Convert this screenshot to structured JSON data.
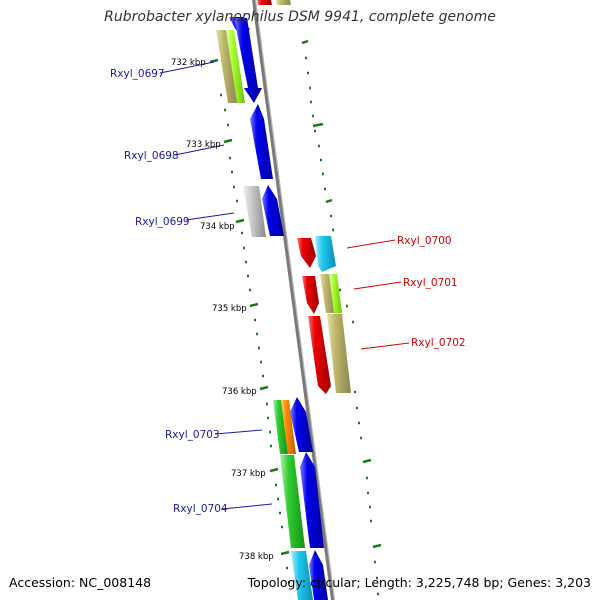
{
  "title": "Rubrobacter xylanophilus DSM 9941, complete genome",
  "footer": {
    "accession": "Accession: NC_008148",
    "topology": "Topology: circular; Length: 3,225,748 bp; Genes: 3,203"
  },
  "tick_labels": [
    "732 kbp",
    "733 kbp",
    "734 kbp",
    "735 kbp",
    "736 kbp",
    "737 kbp",
    "738 kbp"
  ],
  "gene_labels": {
    "left": [
      "Rxyl_0697",
      "Rxyl_0698",
      "Rxyl_0699",
      "Rxyl_0703",
      "Rxyl_0704"
    ],
    "right": [
      "Rxyl_0700",
      "Rxyl_0701",
      "Rxyl_0702"
    ]
  },
  "colors": {
    "left_label": "#1a1aa8",
    "right_label": "#d40000",
    "backbone": "#7a7a7a",
    "tick": "#1a7a1a",
    "blue": "#0000ee",
    "red": "#ee0000",
    "khaki": "#bdb76b",
    "lime": "#a8ff2e",
    "gray": "#b0b0b0",
    "cyan": "#1fc8ee",
    "green": "#2ecc2e",
    "orange": "#ff8c00"
  }
}
